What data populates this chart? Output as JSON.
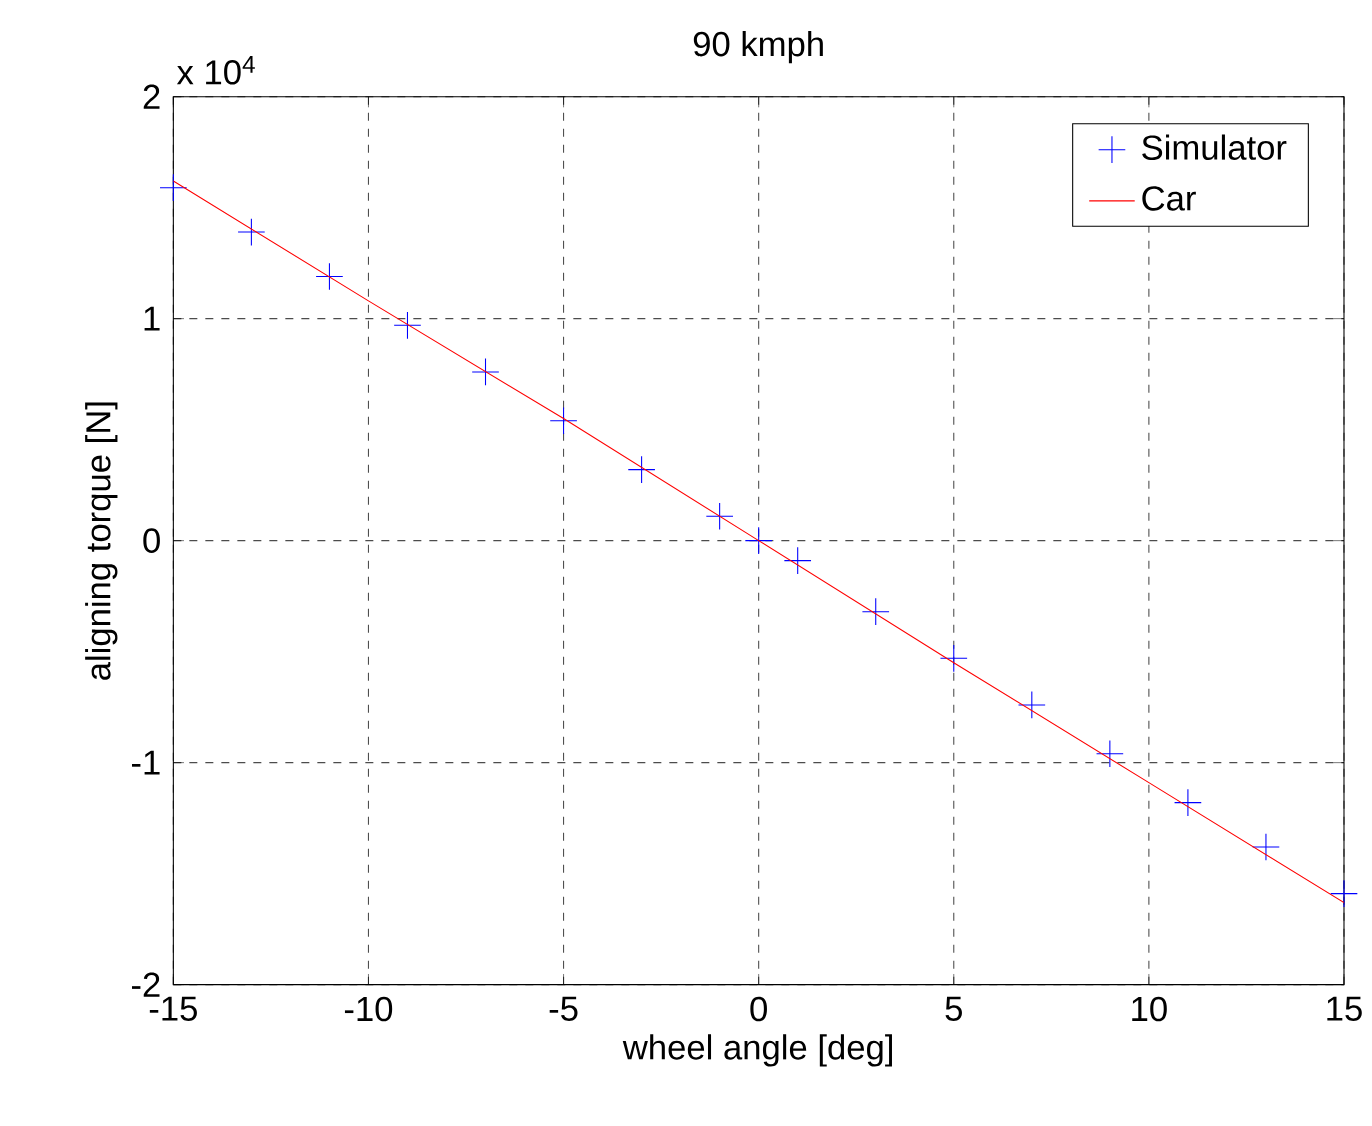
{
  "chart_data": {
    "type": "line",
    "title": "90 kmph",
    "xlabel": "wheel angle [deg]",
    "ylabel": "aligning torque [N]",
    "annotations": [
      "x 10$^{4}$"
    ],
    "xlim": [
      -15,
      15
    ],
    "xticks": [
      -15,
      -10,
      -5,
      0,
      5,
      10,
      15
    ],
    "ylim": [
      -2,
      2
    ],
    "yticks": [
      -2,
      -1,
      0,
      1,
      2
    ],
    "grid": true,
    "legend": "top right",
    "series": [
      {
        "name": "Simulator",
        "type": "scatter",
        "marker": "cross",
        "color": "#0000ff",
        "x": [
          -15,
          -13,
          -11,
          -9,
          -7,
          -5,
          -3,
          -1,
          0,
          1,
          3,
          5,
          7,
          9,
          11,
          13,
          15
        ],
        "values": [
          1.59,
          1.39,
          1.19,
          0.97,
          0.76,
          0.54,
          0.32,
          0.11,
          0,
          -0.09,
          -0.32,
          -0.53,
          -0.74,
          -0.96,
          -1.18,
          -1.38,
          -1.59
        ]
      },
      {
        "name": "Car",
        "marker": "none",
        "line_style": "solid",
        "color": "#ff0000",
        "x": [
          -15,
          -10,
          -5,
          0,
          5,
          10,
          15
        ],
        "values": [
          1.62,
          1.08,
          0.55,
          0,
          -0.55,
          -1.09,
          -1.63
        ]
      }
    ]
  }
}
